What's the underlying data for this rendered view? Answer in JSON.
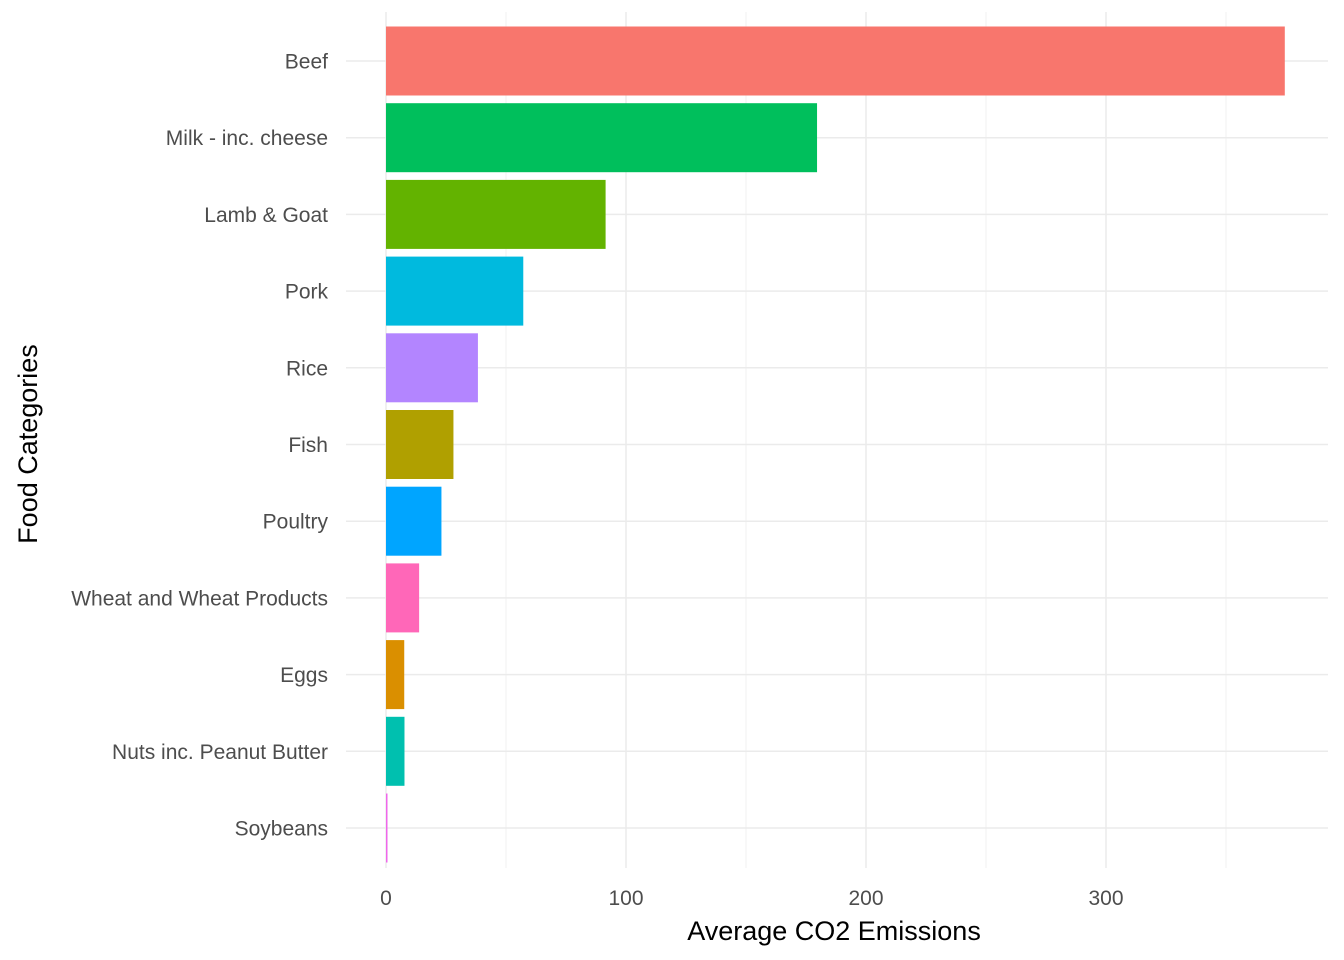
{
  "chart_data": {
    "type": "bar",
    "orientation": "horizontal",
    "title": "",
    "xlabel": "Average CO2 Emissions",
    "ylabel": "Food Categories",
    "xlim": [
      0,
      373
    ],
    "x_ticks": [
      0,
      100,
      200,
      300
    ],
    "x_tick_labels": [
      "0",
      "100",
      "200",
      "300"
    ],
    "grid": true,
    "legend": "none",
    "categories": [
      "Beef",
      "Milk - inc. cheese",
      "Lamb & Goat",
      "Pork",
      "Rice",
      "Fish",
      "Poultry",
      "Wheat and Wheat Products",
      "Eggs",
      "Nuts inc. Peanut Butter",
      "Soybeans"
    ],
    "values": [
      374.5,
      179.6,
      91.5,
      57.2,
      38.3,
      28.1,
      23.1,
      13.8,
      7.6,
      7.7,
      0.6
    ],
    "colors": [
      "#F8766D",
      "#00BF5C",
      "#63B300",
      "#00BADE",
      "#B385FF",
      "#B0A000",
      "#00A5FF",
      "#FF67B8",
      "#DA8F00",
      "#00C0AF",
      "#EF67EB"
    ]
  }
}
